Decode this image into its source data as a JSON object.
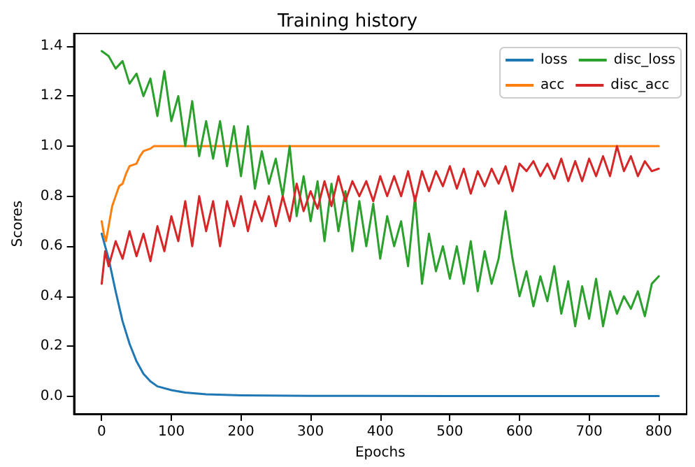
{
  "chart_data": {
    "type": "line",
    "title": "Training history",
    "xlabel": "Epochs",
    "ylabel": "Scores",
    "xlim": [
      -40,
      840
    ],
    "ylim": [
      -0.07,
      1.45
    ],
    "xticks": [
      0,
      100,
      200,
      300,
      400,
      500,
      600,
      700,
      800
    ],
    "yticks": [
      {
        "value": 0,
        "label": "0.0"
      },
      0.2,
      0.4,
      0.6,
      0.8,
      {
        "value": 1,
        "label": "1.0"
      },
      1.2,
      1.4
    ],
    "grid": false,
    "legend": "top right",
    "marker": "none",
    "line_style": "solid",
    "series": [
      {
        "name": "loss",
        "color": "#1f77b4",
        "x": [
          0,
          10,
          20,
          30,
          40,
          50,
          60,
          70,
          80,
          100,
          120,
          150,
          200,
          300,
          500,
          800
        ],
        "values": [
          0.65,
          0.55,
          0.42,
          0.3,
          0.21,
          0.14,
          0.09,
          0.06,
          0.04,
          0.025,
          0.015,
          0.008,
          0.004,
          0.002,
          0.001,
          0.001
        ]
      },
      {
        "name": "acc",
        "color": "#ff7f0e",
        "x": [
          0,
          3,
          6,
          10,
          15,
          20,
          25,
          30,
          35,
          40,
          50,
          55,
          60,
          70,
          75,
          800
        ],
        "values": [
          0.7,
          0.65,
          0.62,
          0.68,
          0.76,
          0.8,
          0.84,
          0.85,
          0.89,
          0.92,
          0.93,
          0.96,
          0.98,
          0.99,
          1.0,
          1.0
        ]
      },
      {
        "name": "disc_loss",
        "color": "#2ca02c",
        "x": [
          0,
          10,
          20,
          30,
          40,
          50,
          60,
          70,
          80,
          90,
          100,
          110,
          120,
          130,
          140,
          150,
          160,
          170,
          180,
          190,
          200,
          210,
          220,
          230,
          240,
          250,
          260,
          270,
          280,
          290,
          300,
          310,
          320,
          330,
          340,
          350,
          360,
          370,
          380,
          390,
          400,
          410,
          420,
          430,
          440,
          450,
          460,
          470,
          480,
          490,
          500,
          510,
          520,
          530,
          540,
          550,
          560,
          570,
          580,
          590,
          600,
          610,
          620,
          630,
          640,
          650,
          660,
          670,
          680,
          690,
          700,
          710,
          720,
          730,
          740,
          750,
          760,
          770,
          780,
          790,
          800
        ],
        "values": [
          1.38,
          1.36,
          1.31,
          1.34,
          1.25,
          1.29,
          1.2,
          1.27,
          1.12,
          1.3,
          1.1,
          1.2,
          1.0,
          1.18,
          0.96,
          1.1,
          0.95,
          1.1,
          0.92,
          1.08,
          0.88,
          1.08,
          0.83,
          0.98,
          0.85,
          0.95,
          0.8,
          1.0,
          0.72,
          0.88,
          0.7,
          0.86,
          0.62,
          0.85,
          0.66,
          0.82,
          0.58,
          0.78,
          0.6,
          0.77,
          0.55,
          0.72,
          0.6,
          0.7,
          0.52,
          0.8,
          0.45,
          0.65,
          0.5,
          0.6,
          0.47,
          0.6,
          0.45,
          0.62,
          0.42,
          0.58,
          0.45,
          0.55,
          0.74,
          0.55,
          0.4,
          0.5,
          0.36,
          0.48,
          0.38,
          0.52,
          0.33,
          0.46,
          0.28,
          0.44,
          0.31,
          0.47,
          0.28,
          0.42,
          0.33,
          0.4,
          0.35,
          0.42,
          0.32,
          0.45,
          0.48
        ]
      },
      {
        "name": "disc_acc",
        "color": "#d62728",
        "x": [
          0,
          5,
          10,
          20,
          30,
          40,
          50,
          60,
          70,
          80,
          90,
          100,
          110,
          120,
          130,
          140,
          150,
          160,
          170,
          180,
          190,
          200,
          210,
          220,
          230,
          240,
          250,
          260,
          270,
          280,
          290,
          300,
          310,
          320,
          330,
          340,
          350,
          360,
          370,
          380,
          390,
          400,
          410,
          420,
          430,
          440,
          450,
          460,
          470,
          480,
          490,
          500,
          510,
          520,
          530,
          540,
          550,
          560,
          570,
          580,
          590,
          600,
          610,
          620,
          630,
          640,
          650,
          660,
          670,
          680,
          690,
          700,
          710,
          720,
          730,
          740,
          750,
          760,
          770,
          780,
          790,
          800
        ],
        "values": [
          0.45,
          0.58,
          0.52,
          0.62,
          0.55,
          0.66,
          0.56,
          0.65,
          0.54,
          0.68,
          0.58,
          0.72,
          0.62,
          0.78,
          0.6,
          0.8,
          0.66,
          0.78,
          0.6,
          0.78,
          0.68,
          0.8,
          0.66,
          0.78,
          0.7,
          0.8,
          0.68,
          0.8,
          0.7,
          0.85,
          0.74,
          0.82,
          0.75,
          0.86,
          0.76,
          0.88,
          0.78,
          0.86,
          0.8,
          0.86,
          0.78,
          0.88,
          0.8,
          0.88,
          0.8,
          0.9,
          0.78,
          0.9,
          0.82,
          0.9,
          0.84,
          0.92,
          0.83,
          0.91,
          0.81,
          0.9,
          0.84,
          0.91,
          0.85,
          0.92,
          0.82,
          0.93,
          0.9,
          0.94,
          0.88,
          0.93,
          0.87,
          0.95,
          0.86,
          0.94,
          0.86,
          0.95,
          0.88,
          0.96,
          0.88,
          1.0,
          0.9,
          0.96,
          0.88,
          0.94,
          0.9,
          0.91
        ]
      }
    ]
  }
}
